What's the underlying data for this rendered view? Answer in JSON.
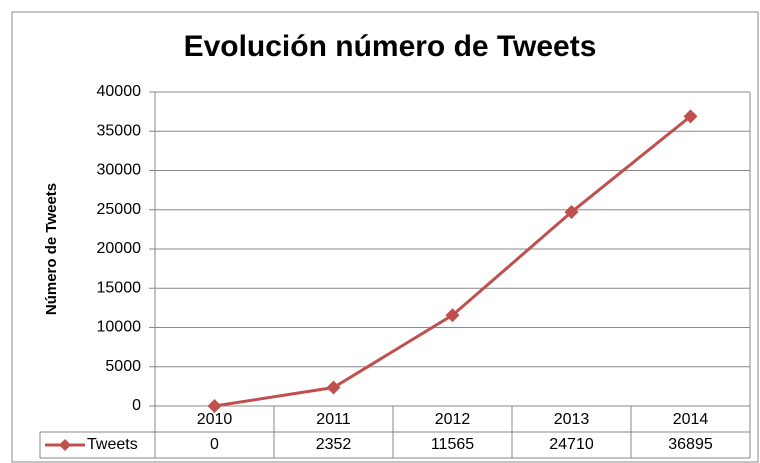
{
  "chart_data": {
    "type": "line",
    "title": "Evolución número de Tweets",
    "y_label": "Número de Tweets",
    "categories": [
      "2010",
      "2011",
      "2012",
      "2013",
      "2014"
    ],
    "series": [
      {
        "name": "Tweets",
        "color": "#c0504d",
        "values": [
          0,
          2352,
          11565,
          24710,
          36895
        ]
      }
    ],
    "ylim": [
      0,
      40000
    ],
    "yticks": [
      0,
      5000,
      10000,
      15000,
      20000,
      25000,
      30000,
      35000,
      40000
    ],
    "grid": true,
    "data_table": true
  }
}
